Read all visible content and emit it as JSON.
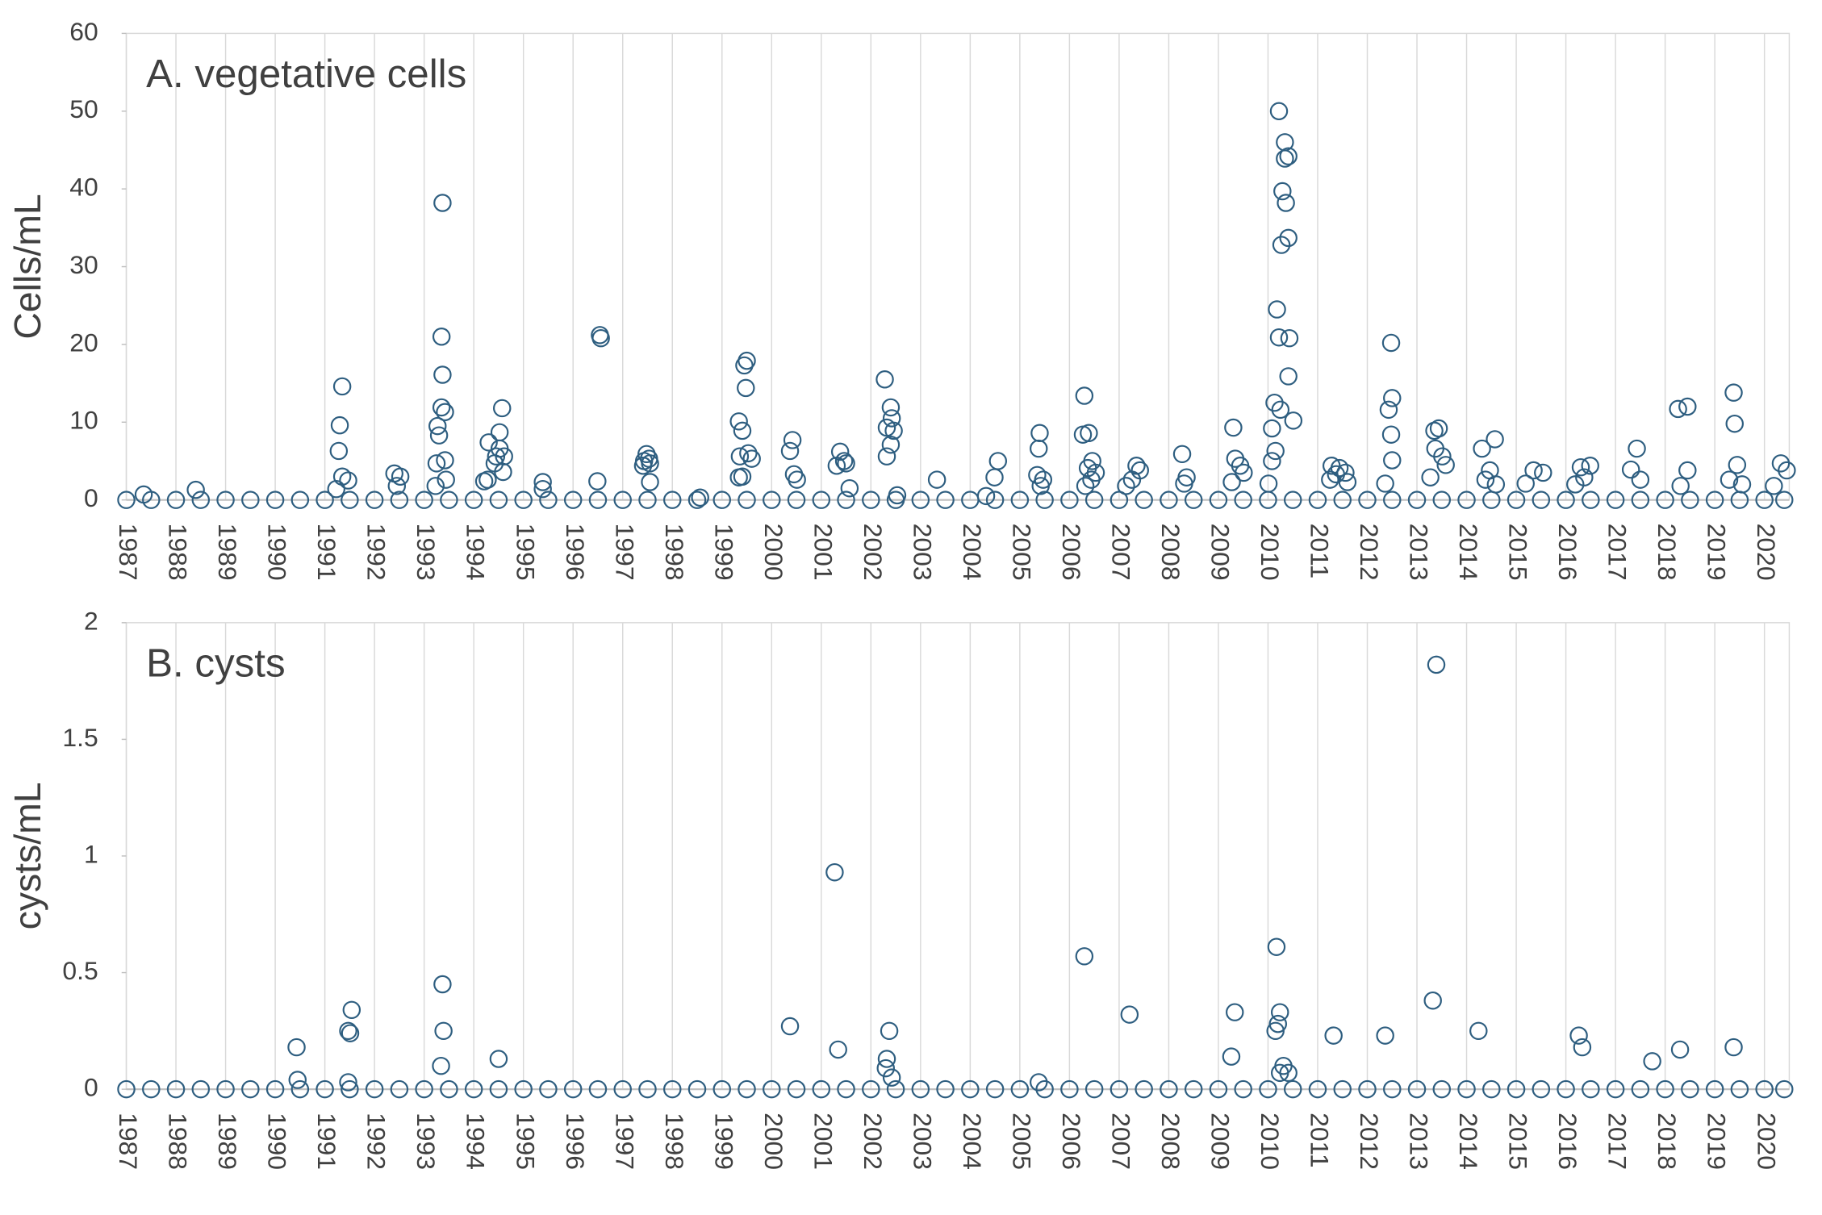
{
  "chart_data": [
    {
      "type": "scatter",
      "title": "A. vegetative cells",
      "ylabel": "Cells/mL",
      "color": "#2e5e80",
      "grid": true,
      "xlim": [
        1987,
        2020.5
      ],
      "ylim": [
        0,
        60
      ],
      "xticks": [
        1987,
        1988,
        1989,
        1990,
        1991,
        1992,
        1993,
        1994,
        1995,
        1996,
        1997,
        1998,
        1999,
        2000,
        2001,
        2002,
        2003,
        2004,
        2005,
        2006,
        2007,
        2008,
        2009,
        2010,
        2011,
        2012,
        2013,
        2014,
        2015,
        2016,
        2017,
        2018,
        2019,
        2020
      ],
      "yticks": [
        0,
        10,
        20,
        30,
        40,
        50,
        60
      ],
      "x": [
        1987.35,
        1988.4,
        1991.35,
        1991.3,
        1991.28,
        1991.35,
        1991.47,
        1991.23,
        1992.4,
        1992.52,
        1992.45,
        1993.37,
        1993.35,
        1993.37,
        1993.35,
        1993.42,
        1993.27,
        1993.3,
        1993.42,
        1993.25,
        1993.44,
        1993.23,
        1994.57,
        1994.52,
        1994.3,
        1994.52,
        1994.45,
        1994.61,
        1994.42,
        1994.59,
        1994.28,
        1994.21,
        1995.39,
        1995.39,
        1996.54,
        1996.56,
        1996.49,
        1997.48,
        1997.53,
        1997.43,
        1997.55,
        1997.41,
        1997.55,
        1998.56,
        1999.5,
        1999.45,
        1999.48,
        1999.34,
        1999.41,
        1999.53,
        1999.6,
        1999.36,
        1999.41,
        1999.34,
        2000.42,
        2000.37,
        2000.45,
        2000.51,
        2001.38,
        2001.46,
        2001.31,
        2001.5,
        2001.57,
        2002.28,
        2002.4,
        2002.42,
        2002.32,
        2002.46,
        2002.4,
        2002.32,
        2002.53,
        2003.33,
        2004.32,
        2004.56,
        2004.49,
        2005.4,
        2005.38,
        2005.35,
        2005.47,
        2005.42,
        2006.3,
        2006.39,
        2006.27,
        2006.46,
        2006.37,
        2006.53,
        2006.44,
        2006.32,
        2007.35,
        2007.42,
        2007.26,
        2007.14,
        2008.27,
        2008.36,
        2008.31,
        2009.3,
        2009.34,
        2009.44,
        2009.51,
        2009.27,
        2010.22,
        2010.34,
        2010.41,
        2010.34,
        2010.29,
        2010.36,
        2010.41,
        2010.27,
        2010.18,
        2010.22,
        2010.43,
        2010.41,
        2010.13,
        2010.25,
        2010.51,
        2010.08,
        2010.15,
        2010.08,
        2010.01,
        2011.28,
        2011.44,
        2011.37,
        2011.56,
        2011.25,
        2011.6,
        2012.48,
        2012.5,
        2012.43,
        2012.48,
        2012.5,
        2012.36,
        2013.35,
        2013.44,
        2013.37,
        2013.51,
        2013.58,
        2013.27,
        2014.31,
        2014.57,
        2014.47,
        2014.38,
        2014.59,
        2015.35,
        2015.54,
        2015.19,
        2016.3,
        2016.49,
        2016.37,
        2016.19,
        2017.43,
        2017.31,
        2017.5,
        2018.26,
        2018.45,
        2018.45,
        2018.31,
        2019.38,
        2019.4,
        2019.45,
        2019.29,
        2019.55,
        2020.33,
        2020.45,
        2020.19,
        1987.0,
        1987.5,
        1988.0,
        1988.5,
        1989.0,
        1989.5,
        1990.0,
        1990.5,
        1991.0,
        1991.5,
        1992.0,
        1992.5,
        1993.0,
        1993.5,
        1994.0,
        1994.5,
        1995.0,
        1995.5,
        1996.0,
        1996.5,
        1997.0,
        1997.5,
        1998.0,
        1998.5,
        1999.0,
        1999.5,
        2000.0,
        2000.5,
        2001.0,
        2001.5,
        2002.0,
        2002.5,
        2003.0,
        2003.5,
        2004.0,
        2004.5,
        2005.0,
        2005.5,
        2006.0,
        2006.5,
        2007.0,
        2007.5,
        2008.0,
        2008.5,
        2009.0,
        2009.5,
        2010.0,
        2010.5,
        2011.0,
        2011.5,
        2012.0,
        2012.5,
        2013.0,
        2013.5,
        2014.0,
        2014.5,
        2015.0,
        2015.5,
        2016.0,
        2016.5,
        2017.0,
        2017.5,
        2018.0,
        2018.5,
        2019.0,
        2019.5,
        2020.0,
        2020.4
      ],
      "values": [
        0.7,
        1.3,
        14.6,
        9.6,
        6.3,
        3,
        2.5,
        1.4,
        3.4,
        3,
        1.8,
        38.2,
        21,
        16.1,
        11.9,
        11.3,
        9.5,
        8.3,
        5.1,
        4.7,
        2.6,
        1.8,
        11.8,
        8.7,
        7.4,
        6.6,
        5.6,
        5.6,
        4.7,
        3.6,
        2.6,
        2.4,
        2.3,
        1.4,
        21.2,
        20.8,
        2.4,
        5.9,
        5.3,
        5,
        4.7,
        4.4,
        2.3,
        0.3,
        17.9,
        17.3,
        14.4,
        10.1,
        8.9,
        6,
        5.3,
        5.6,
        3,
        2.9,
        7.7,
        6.3,
        3.3,
        2.6,
        6.2,
        5,
        4.4,
        4.7,
        1.5,
        15.5,
        11.9,
        10.5,
        9.3,
        8.9,
        7.1,
        5.6,
        0.6,
        2.6,
        0.5,
        5,
        2.9,
        8.6,
        6.6,
        3.2,
        2.6,
        1.8,
        13.4,
        8.6,
        8.4,
        5,
        4.1,
        3.5,
        2.6,
        1.8,
        4.4,
        3.8,
        2.6,
        1.8,
        5.9,
        2.9,
        2.1,
        9.3,
        5.3,
        4.4,
        3.5,
        2.3,
        50,
        46,
        44.2,
        43.9,
        39.7,
        38.2,
        33.7,
        32.8,
        24.5,
        20.9,
        20.8,
        15.9,
        12.5,
        11.6,
        10.2,
        9.2,
        6.3,
        5,
        2.1,
        4.4,
        4.1,
        3.3,
        3.5,
        2.6,
        2.3,
        20.2,
        13.1,
        11.6,
        8.4,
        5.1,
        2.1,
        8.9,
        9.2,
        6.6,
        5.6,
        4.5,
        2.9,
        6.6,
        7.8,
        3.8,
        2.6,
        2,
        3.8,
        3.5,
        2.1,
        4.2,
        4.4,
        2.9,
        2,
        6.6,
        3.9,
        2.6,
        11.7,
        12,
        3.8,
        1.8,
        13.8,
        9.8,
        4.5,
        2.6,
        2,
        4.7,
        3.8,
        1.8,
        0,
        0,
        0,
        0,
        0,
        0,
        0,
        0,
        0,
        0,
        0,
        0,
        0,
        0,
        0,
        0,
        0,
        0,
        0,
        0,
        0,
        0,
        0,
        0,
        0,
        0,
        0,
        0,
        0,
        0,
        0,
        0,
        0,
        0,
        0,
        0,
        0,
        0,
        0,
        0,
        0,
        0,
        0,
        0,
        0,
        0,
        0,
        0,
        0,
        0,
        0,
        0,
        0,
        0,
        0,
        0,
        0,
        0,
        0,
        0,
        0,
        0,
        0,
        0,
        0,
        0,
        0,
        0
      ]
    },
    {
      "type": "scatter",
      "title": "B. cysts",
      "ylabel": "cysts/mL",
      "color": "#2e5e80",
      "grid": true,
      "xlim": [
        1987,
        2020.5
      ],
      "ylim": [
        0,
        2
      ],
      "xticks": [
        1987,
        1988,
        1989,
        1990,
        1991,
        1992,
        1993,
        1994,
        1995,
        1996,
        1997,
        1998,
        1999,
        2000,
        2001,
        2002,
        2003,
        2004,
        2005,
        2006,
        2007,
        2008,
        2009,
        2010,
        2011,
        2012,
        2013,
        2014,
        2015,
        2016,
        2017,
        2018,
        2019,
        2020
      ],
      "yticks": [
        0,
        0.5,
        1,
        1.5,
        2
      ],
      "x": [
        1990.43,
        1990.45,
        1991.47,
        1991.54,
        1991.51,
        1991.47,
        1993.37,
        1993.39,
        1993.34,
        1994.5,
        2000.37,
        2001.27,
        2001.34,
        2002.37,
        2002.32,
        2002.3,
        2002.42,
        2005.38,
        2006.3,
        2007.21,
        2009.33,
        2009.26,
        2010.17,
        2010.24,
        2010.2,
        2010.15,
        2010.31,
        2010.41,
        2010.24,
        2011.32,
        2012.36,
        2013.39,
        2013.32,
        2014.24,
        2016.26,
        2016.33,
        2017.74,
        2018.3,
        2019.38,
        1987.0,
        1987.5,
        1988.0,
        1988.5,
        1989.0,
        1989.5,
        1990.0,
        1990.5,
        1991.0,
        1991.5,
        1992.0,
        1992.5,
        1993.0,
        1993.5,
        1994.0,
        1994.5,
        1995.0,
        1995.5,
        1996.0,
        1996.5,
        1997.0,
        1997.5,
        1998.0,
        1998.5,
        1999.0,
        1999.5,
        2000.0,
        2000.5,
        2001.0,
        2001.5,
        2002.0,
        2002.5,
        2003.0,
        2003.5,
        2004.0,
        2004.5,
        2005.0,
        2005.5,
        2006.0,
        2006.5,
        2007.0,
        2007.5,
        2008.0,
        2008.5,
        2009.0,
        2009.5,
        2010.0,
        2010.5,
        2011.0,
        2011.5,
        2012.0,
        2012.5,
        2013.0,
        2013.5,
        2014.0,
        2014.5,
        2015.0,
        2015.5,
        2016.0,
        2016.5,
        2017.0,
        2017.5,
        2018.0,
        2018.5,
        2019.0,
        2019.5,
        2020.0,
        2020.4
      ],
      "values": [
        0.18,
        0.04,
        0.25,
        0.34,
        0.24,
        0.03,
        0.45,
        0.25,
        0.1,
        0.13,
        0.27,
        0.93,
        0.17,
        0.25,
        0.13,
        0.09,
        0.05,
        0.03,
        0.57,
        0.32,
        0.33,
        0.14,
        0.61,
        0.33,
        0.28,
        0.25,
        0.1,
        0.07,
        0.07,
        0.23,
        0.23,
        1.82,
        0.38,
        0.25,
        0.23,
        0.18,
        0.12,
        0.17,
        0.18,
        0,
        0,
        0,
        0,
        0,
        0,
        0,
        0,
        0,
        0,
        0,
        0,
        0,
        0,
        0,
        0,
        0,
        0,
        0,
        0,
        0,
        0,
        0,
        0,
        0,
        0,
        0,
        0,
        0,
        0,
        0,
        0,
        0,
        0,
        0,
        0,
        0,
        0,
        0,
        0,
        0,
        0,
        0,
        0,
        0,
        0,
        0,
        0,
        0,
        0,
        0,
        0,
        0,
        0,
        0,
        0,
        0,
        0,
        0,
        0,
        0,
        0,
        0,
        0,
        0,
        0,
        0,
        0
      ]
    }
  ]
}
